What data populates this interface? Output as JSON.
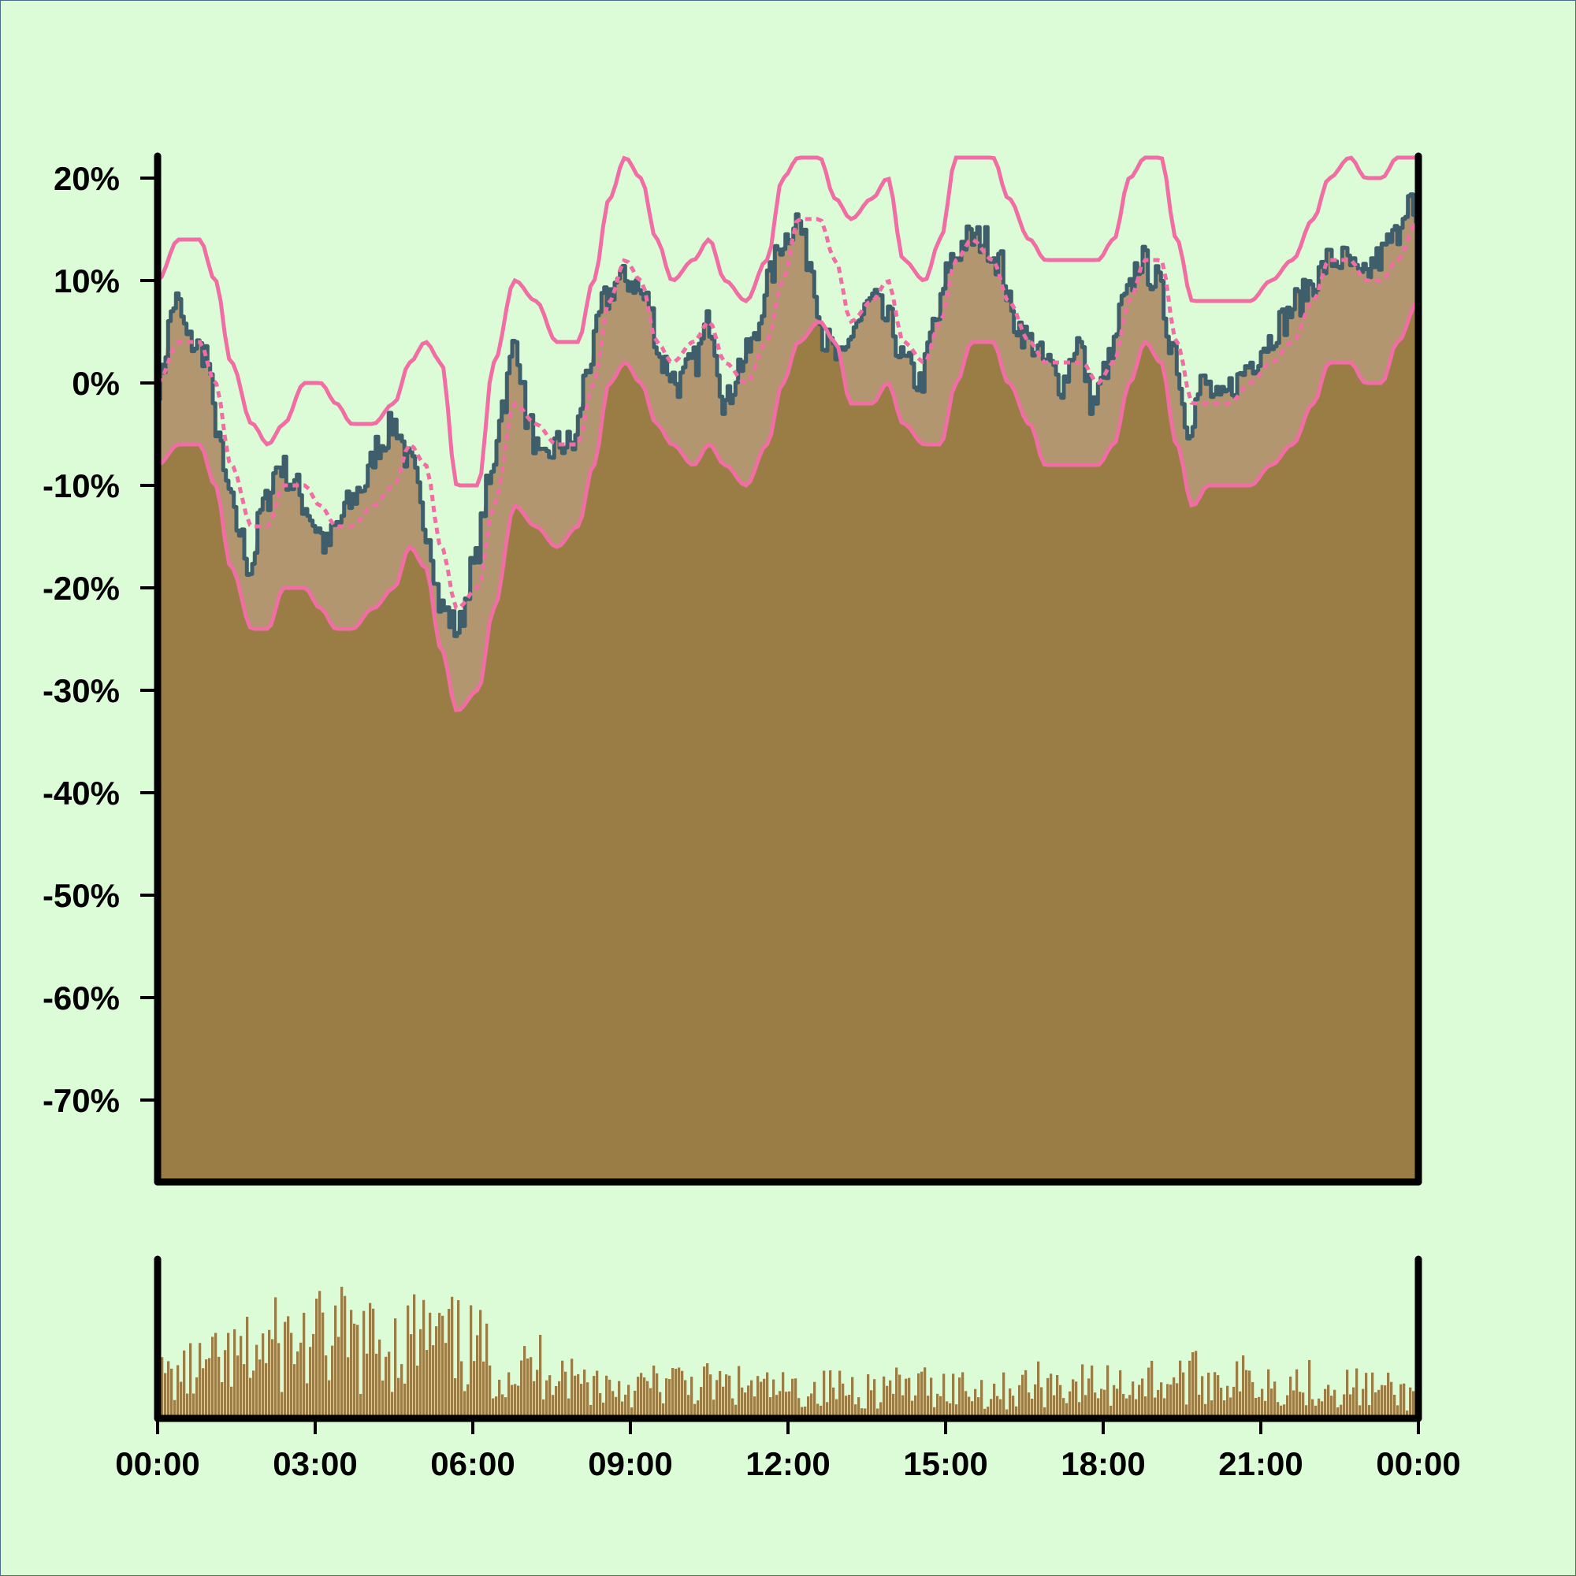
{
  "colors": {
    "background": "#dcfcd8",
    "area_fill": "#9a7d45",
    "band_fill": "#b19670",
    "price_line": "#3d5e6a",
    "band_line": "#f06ea3",
    "axis": "#000000",
    "volume_bar": "#9a7d45"
  },
  "chart_data": [
    {
      "type": "line",
      "panel": "main",
      "title": "",
      "xlabel": "",
      "ylabel": "",
      "y_unit": "%",
      "ylim": [
        -78,
        22
      ],
      "y_ticks": [
        20,
        10,
        0,
        -10,
        -20,
        -30,
        -40,
        -50,
        -60,
        -70
      ],
      "y_tick_labels": [
        "20%",
        "10%",
        "0%",
        "-10%",
        "-20%",
        "-30%",
        "-40%",
        "-50%",
        "-60%",
        "-70%"
      ],
      "x_range_hours": [
        0,
        24
      ],
      "grid": false,
      "legend": "none",
      "series": [
        {
          "role": "price",
          "style": "step line with area fill",
          "x": [
            0,
            0.33,
            0.6,
            0.9,
            1.1,
            1.3,
            1.5,
            1.75,
            2.0,
            2.3,
            2.6,
            2.8,
            3.0,
            3.2,
            3.4,
            3.6,
            3.9,
            4.2,
            4.5,
            4.8,
            5.1,
            5.4,
            5.7,
            6.0,
            6.3,
            6.55,
            6.8,
            7.05,
            7.3,
            7.6,
            7.9,
            8.2,
            8.5,
            8.75,
            9.0,
            9.3,
            9.6,
            9.9,
            10.2,
            10.5,
            10.8,
            11.1,
            11.35,
            11.6,
            11.9,
            12.15,
            12.4,
            12.7,
            13.0,
            13.3,
            13.6,
            13.9,
            14.2,
            14.5,
            14.8,
            15.1,
            15.4,
            15.7,
            16.0,
            16.3,
            16.6,
            16.9,
            17.2,
            17.5,
            17.8,
            18.1,
            18.4,
            18.7,
            19.0,
            19.3,
            19.6,
            19.9,
            20.2,
            20.5,
            20.8,
            21.1,
            21.4,
            21.7,
            22.0,
            22.3,
            22.6,
            22.9,
            23.2,
            23.5,
            23.8,
            24.0
          ],
          "y": [
            0,
            8,
            4,
            3,
            -4,
            -10,
            -14,
            -18,
            -12,
            -8,
            -10,
            -12,
            -14,
            -16,
            -14,
            -12,
            -10,
            -6,
            -4,
            -8,
            -14,
            -22,
            -24,
            -18,
            -10,
            -2,
            4,
            -4,
            -8,
            -6,
            -6,
            2,
            8,
            10,
            10,
            8,
            2,
            0,
            2,
            6,
            -2,
            2,
            4,
            10,
            14,
            16,
            12,
            4,
            2,
            6,
            8,
            6,
            2,
            0,
            6,
            12,
            14,
            14,
            12,
            6,
            4,
            2,
            0,
            4,
            -2,
            2,
            8,
            12,
            10,
            4,
            -4,
            0,
            -2,
            0,
            2,
            4,
            6,
            8,
            10,
            12,
            12,
            10,
            12,
            14,
            18,
            14
          ]
        },
        {
          "role": "upper band",
          "style": "solid line",
          "x": [
            0,
            0.4,
            0.8,
            1.1,
            1.4,
            1.8,
            2.1,
            2.4,
            2.8,
            3.1,
            3.4,
            3.7,
            4.1,
            4.5,
            4.8,
            5.1,
            5.4,
            5.7,
            6.1,
            6.4,
            6.8,
            7.2,
            7.6,
            8.0,
            8.3,
            8.6,
            8.9,
            9.2,
            9.5,
            9.8,
            10.2,
            10.5,
            10.8,
            11.2,
            11.6,
            11.9,
            12.2,
            12.6,
            12.9,
            13.2,
            13.6,
            13.9,
            14.2,
            14.6,
            14.9,
            15.2,
            15.5,
            15.9,
            16.2,
            16.6,
            16.9,
            17.2,
            17.6,
            17.9,
            18.2,
            18.5,
            18.8,
            19.1,
            19.4,
            19.7,
            20.0,
            20.4,
            20.8,
            21.2,
            21.6,
            22.0,
            22.3,
            22.7,
            23.0,
            23.3,
            23.6,
            24.0
          ],
          "y": [
            10,
            14,
            14,
            10,
            2,
            -4,
            -6,
            -4,
            0,
            0,
            -2,
            -4,
            -4,
            -2,
            2,
            4,
            2,
            -10,
            -10,
            2,
            10,
            8,
            4,
            4,
            10,
            18,
            22,
            20,
            14,
            10,
            12,
            14,
            10,
            8,
            12,
            20,
            22,
            22,
            18,
            16,
            18,
            20,
            12,
            10,
            14,
            22,
            22,
            22,
            18,
            14,
            12,
            12,
            12,
            12,
            14,
            20,
            22,
            22,
            14,
            8,
            8,
            8,
            8,
            10,
            12,
            16,
            20,
            22,
            20,
            20,
            22,
            22
          ]
        },
        {
          "role": "middle band",
          "style": "dashed line",
          "x": [
            0,
            0.4,
            0.8,
            1.1,
            1.4,
            1.8,
            2.1,
            2.4,
            2.8,
            3.1,
            3.4,
            3.7,
            4.1,
            4.5,
            4.8,
            5.1,
            5.4,
            5.7,
            6.1,
            6.4,
            6.8,
            7.2,
            7.6,
            8.0,
            8.3,
            8.6,
            8.9,
            9.2,
            9.5,
            9.8,
            10.2,
            10.5,
            10.8,
            11.2,
            11.6,
            11.9,
            12.2,
            12.6,
            12.9,
            13.2,
            13.6,
            13.9,
            14.2,
            14.6,
            14.9,
            15.2,
            15.5,
            15.9,
            16.2,
            16.6,
            16.9,
            17.2,
            17.6,
            17.9,
            18.2,
            18.5,
            18.8,
            19.1,
            19.4,
            19.7,
            20.0,
            20.4,
            20.8,
            21.2,
            21.6,
            22.0,
            22.3,
            22.7,
            23.0,
            23.3,
            23.6,
            24.0
          ],
          "y": [
            0,
            4,
            4,
            0,
            -8,
            -14,
            -14,
            -10,
            -10,
            -12,
            -14,
            -14,
            -12,
            -10,
            -6,
            -8,
            -16,
            -22,
            -20,
            -12,
            -2,
            -4,
            -6,
            -6,
            0,
            8,
            12,
            10,
            4,
            2,
            4,
            6,
            2,
            0,
            4,
            10,
            16,
            16,
            12,
            6,
            8,
            10,
            4,
            2,
            6,
            12,
            14,
            12,
            8,
            4,
            2,
            2,
            2,
            0,
            2,
            8,
            12,
            12,
            4,
            -2,
            -2,
            -2,
            0,
            2,
            4,
            8,
            12,
            12,
            10,
            10,
            12,
            16
          ]
        },
        {
          "role": "lower band",
          "style": "solid line",
          "x": [
            0,
            0.4,
            0.8,
            1.1,
            1.4,
            1.8,
            2.1,
            2.4,
            2.8,
            3.1,
            3.4,
            3.7,
            4.1,
            4.5,
            4.8,
            5.1,
            5.4,
            5.7,
            6.1,
            6.4,
            6.8,
            7.2,
            7.6,
            8.0,
            8.3,
            8.6,
            8.9,
            9.2,
            9.5,
            9.8,
            10.2,
            10.5,
            10.8,
            11.2,
            11.6,
            11.9,
            12.2,
            12.6,
            12.9,
            13.2,
            13.6,
            13.9,
            14.2,
            14.6,
            14.9,
            15.2,
            15.5,
            15.9,
            16.2,
            16.6,
            16.9,
            17.2,
            17.6,
            17.9,
            18.2,
            18.5,
            18.8,
            19.1,
            19.4,
            19.7,
            20.0,
            20.4,
            20.8,
            21.2,
            21.6,
            22.0,
            22.3,
            22.7,
            23.0,
            23.3,
            23.6,
            24.0
          ],
          "y": [
            -8,
            -6,
            -6,
            -10,
            -18,
            -24,
            -24,
            -20,
            -20,
            -22,
            -24,
            -24,
            -22,
            -20,
            -16,
            -18,
            -26,
            -32,
            -30,
            -22,
            -12,
            -14,
            -16,
            -14,
            -8,
            0,
            2,
            0,
            -4,
            -6,
            -8,
            -6,
            -8,
            -10,
            -6,
            0,
            4,
            6,
            4,
            -2,
            -2,
            0,
            -4,
            -6,
            -6,
            0,
            4,
            4,
            0,
            -4,
            -8,
            -8,
            -8,
            -8,
            -6,
            0,
            4,
            2,
            -6,
            -12,
            -10,
            -10,
            -10,
            -8,
            -6,
            -2,
            2,
            2,
            0,
            0,
            4,
            8
          ]
        }
      ]
    },
    {
      "type": "bar",
      "panel": "volume",
      "title": "",
      "xlabel": "",
      "ylabel": "",
      "ylim": [
        0,
        100
      ],
      "x_ticks": [
        "00:00",
        "03:00",
        "06:00",
        "09:00",
        "12:00",
        "15:00",
        "18:00",
        "21:00",
        "00:00"
      ],
      "x_range_hours": [
        0,
        24
      ],
      "bar_count": 400,
      "profile_hours": [
        0,
        0.5,
        1,
        1.5,
        2,
        2.5,
        3,
        3.5,
        4,
        4.5,
        5,
        5.5,
        6,
        6.5,
        7,
        7.5,
        8,
        9,
        10,
        11,
        12,
        13,
        14,
        15,
        16,
        17,
        18,
        19,
        20,
        21,
        22,
        23,
        24
      ],
      "profile_values": [
        30,
        35,
        40,
        45,
        55,
        60,
        60,
        62,
        58,
        60,
        64,
        58,
        55,
        40,
        38,
        45,
        30,
        25,
        28,
        25,
        22,
        24,
        24,
        26,
        22,
        28,
        26,
        30,
        32,
        30,
        28,
        24,
        18
      ]
    }
  ]
}
